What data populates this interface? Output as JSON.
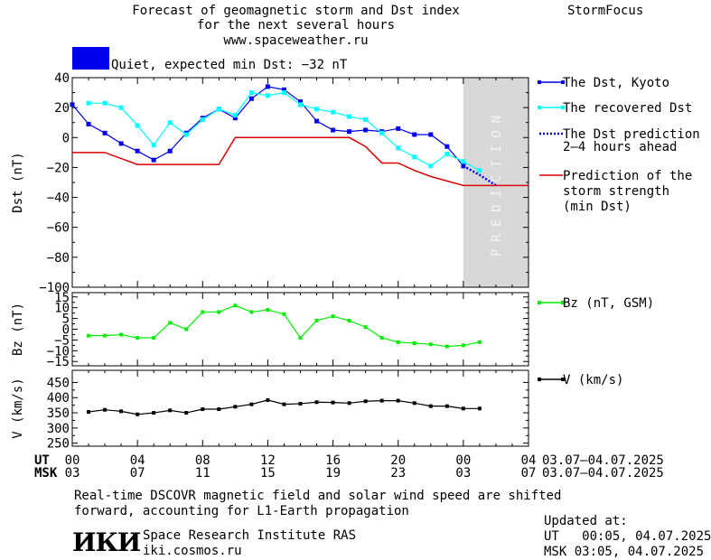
{
  "header": {
    "title_line1": "Forecast of geomagnetic storm and Dst index",
    "title_line2": "for the next several hours",
    "title_line3": "www.spaceweather.ru",
    "brand": "StormFocus"
  },
  "status": {
    "color": "#0000ee",
    "text": "Quiet, expected min Dst: −32 nT"
  },
  "prediction_label": "PREDICTION",
  "legend": {
    "dst_kyoto": "The Dst, Kyoto",
    "recovered": "The recovered Dst",
    "prediction_line1": "The Dst prediction",
    "prediction_line2": "2–4 hours ahead",
    "storm_line1": "Prediction of the",
    "storm_line2": "storm strength",
    "storm_line3": "(min Dst)",
    "bz": "Bz (nT, GSM)",
    "v": "V (km/s)"
  },
  "axes": {
    "ut_label": "UT",
    "msk_label": "MSK",
    "ut_ticks": [
      "00",
      "04",
      "08",
      "12",
      "16",
      "20",
      "00",
      "04"
    ],
    "msk_ticks": [
      "03",
      "07",
      "11",
      "15",
      "19",
      "23",
      "03",
      "07"
    ],
    "date_range_ut": "03.07–04.07.2025",
    "date_range_msk": "03.07–04.07.2025"
  },
  "chart_data": [
    {
      "type": "line",
      "name": "dst-panel",
      "ylabel": "Dst (nT)",
      "ylim": [
        -100,
        40
      ],
      "yticks": [
        "40",
        "20",
        "0",
        "−20",
        "−40",
        "−60",
        "−80",
        "−100"
      ],
      "ytick_values": [
        40,
        20,
        0,
        -20,
        -40,
        -60,
        -80,
        -100
      ],
      "xlim": [
        0,
        28
      ],
      "prediction_band": [
        24,
        28
      ],
      "series": [
        {
          "name": "The Dst, Kyoto",
          "color": "#0000ee",
          "x": [
            0,
            1,
            2,
            3,
            4,
            5,
            6,
            7,
            8,
            9,
            10,
            11,
            12,
            13,
            14,
            15,
            16,
            17,
            18,
            19,
            20,
            21,
            22,
            23,
            24
          ],
          "y": [
            22,
            9,
            3,
            -4,
            -9,
            -15,
            -9,
            3,
            13,
            19,
            13,
            26,
            34,
            32,
            24,
            11,
            5,
            4,
            5,
            4,
            6,
            2,
            2,
            -6,
            -19
          ]
        },
        {
          "name": "The recovered Dst",
          "color": "#00ffff",
          "x": [
            1,
            2,
            3,
            4,
            5,
            6,
            7,
            8,
            9,
            10,
            11,
            12,
            13,
            14,
            15,
            16,
            17,
            18,
            19,
            20,
            21,
            22,
            23,
            24,
            25
          ],
          "y": [
            23,
            23,
            20,
            8,
            -5,
            10,
            2,
            12,
            19,
            15,
            30,
            28,
            30,
            22,
            19,
            17,
            14,
            12,
            3,
            -7,
            -13,
            -19,
            -11,
            -16,
            -22
          ]
        },
        {
          "name": "The Dst prediction 2–4 hours ahead",
          "color": "#0000ee",
          "dashed": true,
          "x": [
            24,
            25,
            26
          ],
          "y": [
            -19,
            -25,
            -32
          ]
        },
        {
          "name": "Prediction of the storm strength (min Dst)",
          "color": "#dd0000",
          "x": [
            0,
            2,
            4,
            5,
            6,
            7,
            8,
            9,
            10,
            11,
            12,
            13,
            14,
            15,
            16,
            17,
            18,
            19,
            20,
            21,
            22,
            23,
            24,
            25,
            26,
            27,
            28
          ],
          "y": [
            -10,
            -10,
            -18,
            -18,
            -18,
            -18,
            -18,
            -18,
            0,
            0,
            0,
            0,
            0,
            0,
            0,
            0,
            -6,
            -17,
            -17,
            -22,
            -26,
            -29,
            -32,
            -32,
            -32,
            -32,
            -32
          ]
        }
      ]
    },
    {
      "type": "line",
      "name": "bz-panel",
      "ylabel": "Bz (nT)",
      "ylim": [
        -17,
        17
      ],
      "yticks": [
        "15",
        "10",
        "5",
        "0",
        "−5",
        "−10",
        "−15"
      ],
      "ytick_values": [
        15,
        10,
        5,
        0,
        -5,
        -10,
        -15
      ],
      "xlim": [
        0,
        28
      ],
      "series": [
        {
          "name": "Bz (nT, GSM)",
          "color": "#00ee00",
          "x": [
            1,
            2,
            3,
            4,
            5,
            6,
            7,
            8,
            9,
            10,
            11,
            12,
            13,
            14,
            15,
            16,
            17,
            18,
            19,
            20,
            21,
            22,
            23,
            24,
            25
          ],
          "y": [
            -3,
            -3,
            -2.5,
            -4,
            -4,
            3,
            0,
            8,
            8,
            11,
            8,
            9,
            7,
            -4,
            4,
            6,
            4,
            1,
            -4,
            -6,
            -6.5,
            -7,
            -8,
            -7.5,
            -6
          ]
        }
      ]
    },
    {
      "type": "line",
      "name": "v-panel",
      "ylabel": "V (km/s)",
      "ylim": [
        240,
        490
      ],
      "yticks": [
        "450",
        "400",
        "350",
        "300",
        "250"
      ],
      "ytick_values": [
        450,
        400,
        350,
        300,
        250
      ],
      "xlim": [
        0,
        28
      ],
      "series": [
        {
          "name": "V (km/s)",
          "color": "#000000",
          "x": [
            1,
            2,
            3,
            4,
            5,
            6,
            7,
            8,
            9,
            10,
            11,
            12,
            13,
            14,
            15,
            16,
            17,
            18,
            19,
            20,
            21,
            22,
            23,
            24,
            25
          ],
          "y": [
            353,
            360,
            355,
            345,
            350,
            358,
            350,
            362,
            362,
            370,
            378,
            392,
            378,
            380,
            385,
            384,
            382,
            388,
            390,
            390,
            382,
            372,
            372,
            364,
            364
          ]
        }
      ]
    }
  ],
  "footer": {
    "note_line1": "Real-time DSCOVR magnetic field and solar wind speed are shifted",
    "note_line2": "forward, accounting for L1-Earth propagation",
    "logo": "ИКИ",
    "org_name": "Space Research Institute RAS",
    "org_url": "iki.cosmos.ru",
    "updated_label": "Updated at:",
    "updated_ut": "UT   00:05, 04.07.2025",
    "updated_msk": "MSK 03:05, 04.07.2025"
  }
}
